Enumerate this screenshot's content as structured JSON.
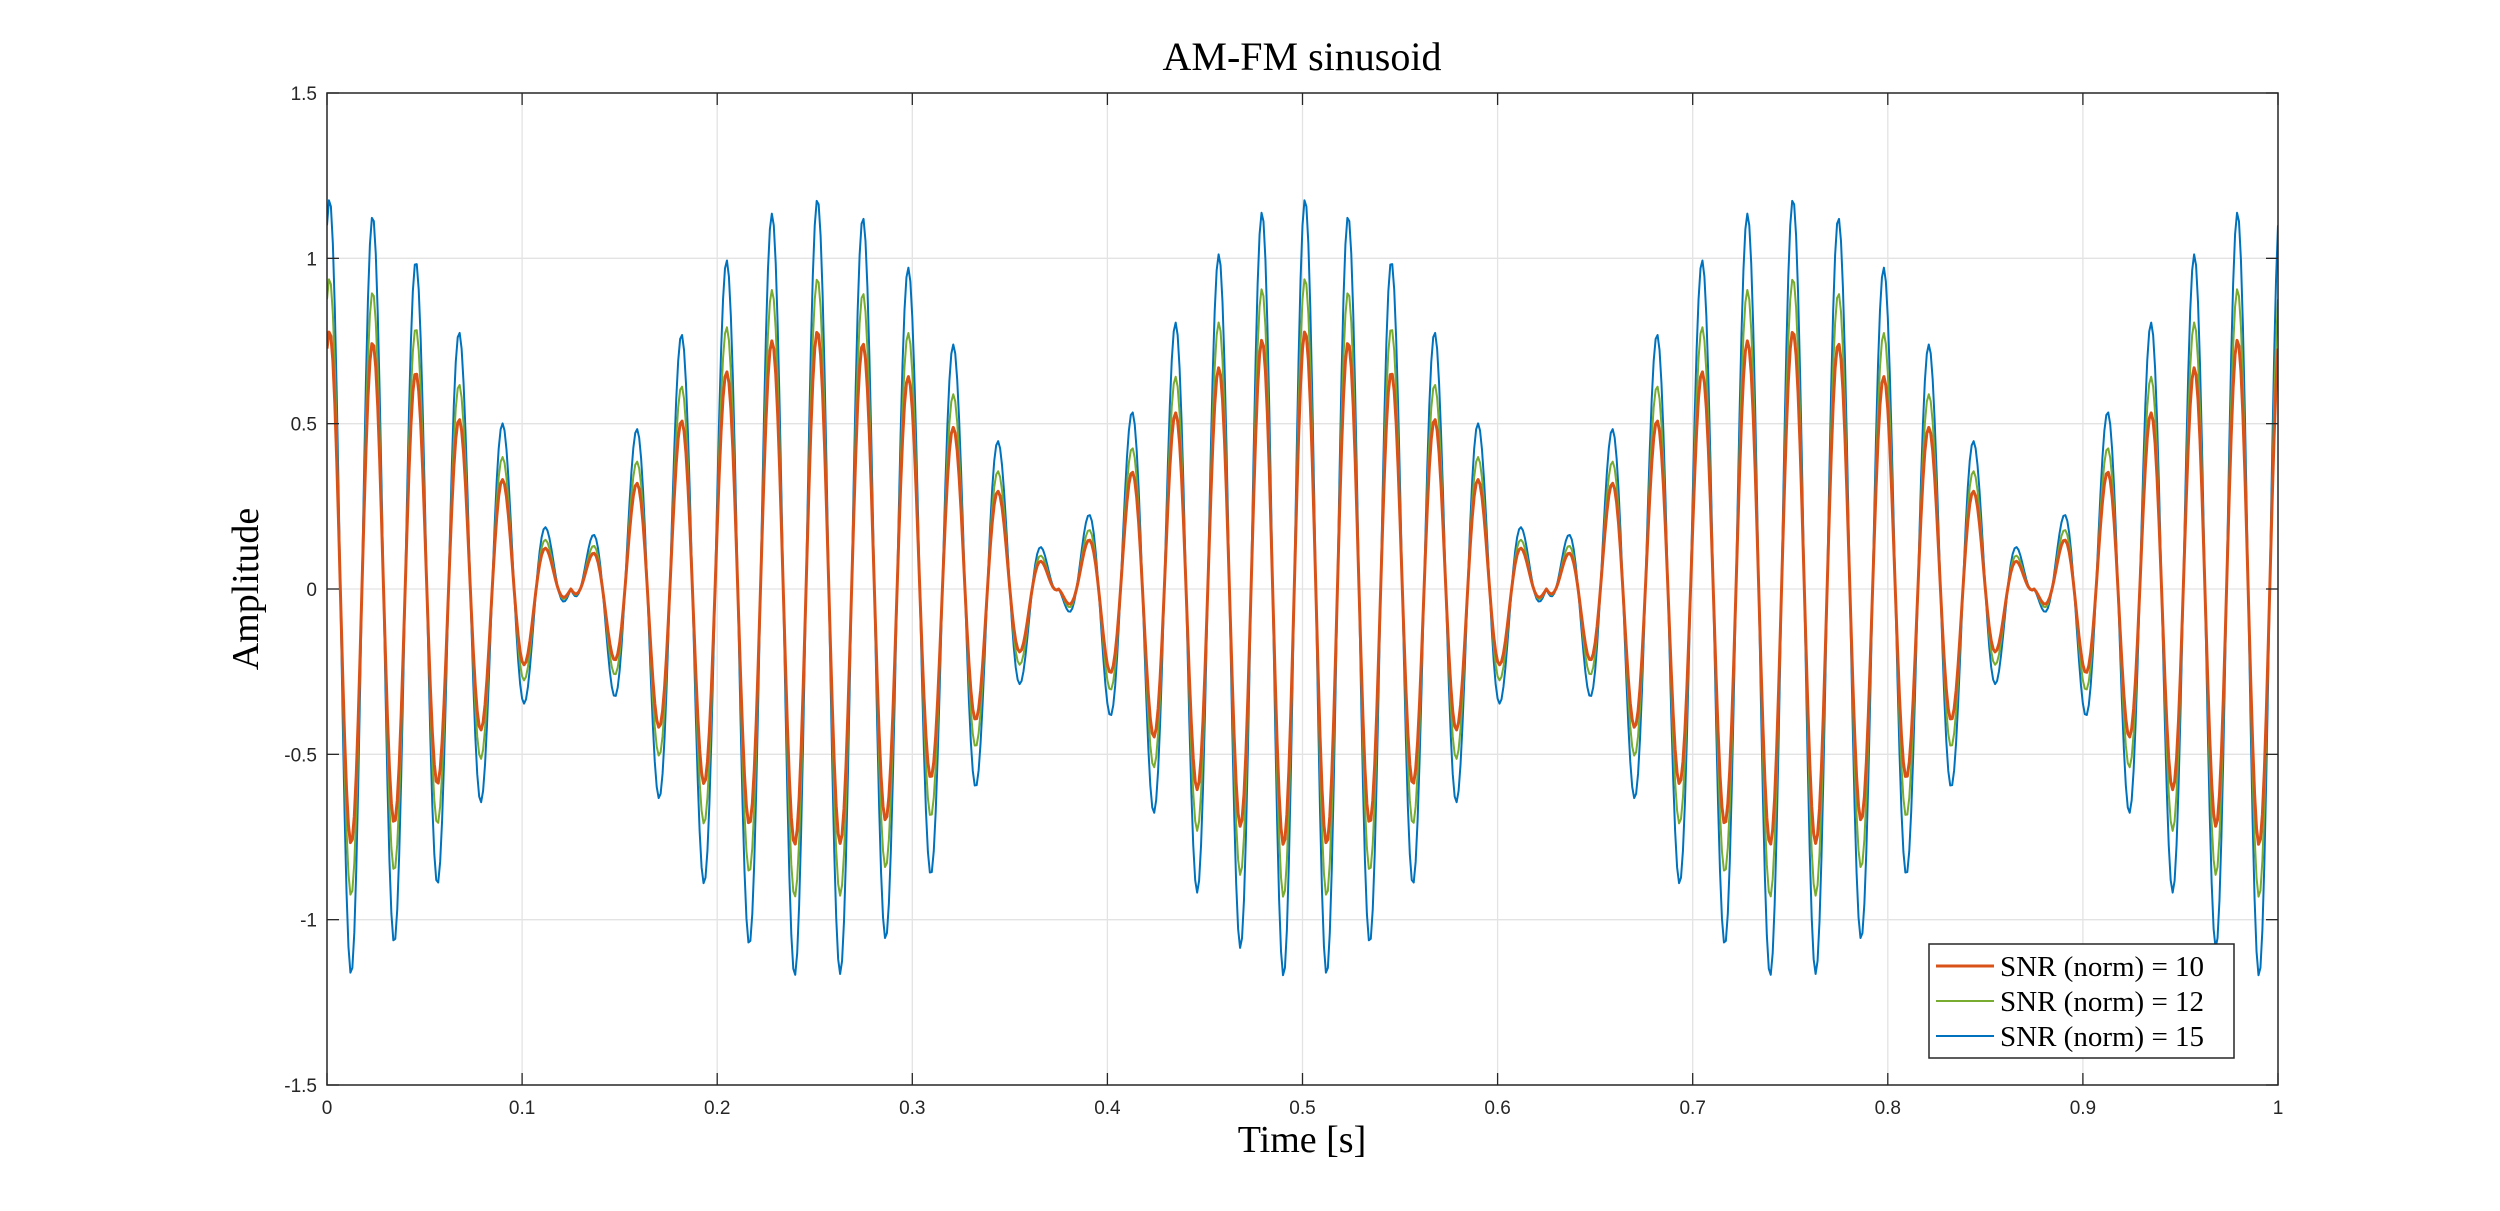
{
  "chart_data": {
    "type": "line",
    "title": "AM-FM sinusoid",
    "xlabel": "Time [s]",
    "ylabel": "Amplitude",
    "xlim": [
      0,
      1
    ],
    "ylim": [
      -1.5,
      1.5
    ],
    "grid": true,
    "legend_position": "bottom-right",
    "x_ticks": [
      0,
      0.1,
      0.2,
      0.3,
      0.4,
      0.5,
      0.6,
      0.7,
      0.8,
      0.9,
      1
    ],
    "x_tick_labels": [
      "0",
      "0.1",
      "0.2",
      "0.3",
      "0.4",
      "0.5",
      "0.6",
      "0.7",
      "0.8",
      "0.9",
      "1"
    ],
    "y_ticks": [
      1.5,
      1,
      0.5,
      0,
      -0.5,
      -1,
      -1.5
    ],
    "y_tick_labels": [
      "1.5",
      "1",
      "0.5",
      "0",
      "-0.5",
      "-1",
      "-1.5"
    ],
    "signal": {
      "envelope_peak_times": [
        0.0,
        0.25,
        0.5,
        0.75,
        1.0
      ],
      "envelope_null_times": [
        0.125,
        0.375,
        0.625,
        0.875
      ],
      "carrier_frequency_hz": 44,
      "samples": 1000
    },
    "series": [
      {
        "name": "SNR (norm) = 10",
        "color": "#D95319",
        "peak_amplitude": 0.78,
        "line_width": 3
      },
      {
        "name": "SNR (norm) = 12",
        "color": "#77AC30",
        "peak_amplitude": 0.94,
        "line_width": 2
      },
      {
        "name": "SNR (norm) = 15",
        "color": "#0072BD",
        "peak_amplitude": 1.18,
        "line_width": 2
      }
    ]
  }
}
